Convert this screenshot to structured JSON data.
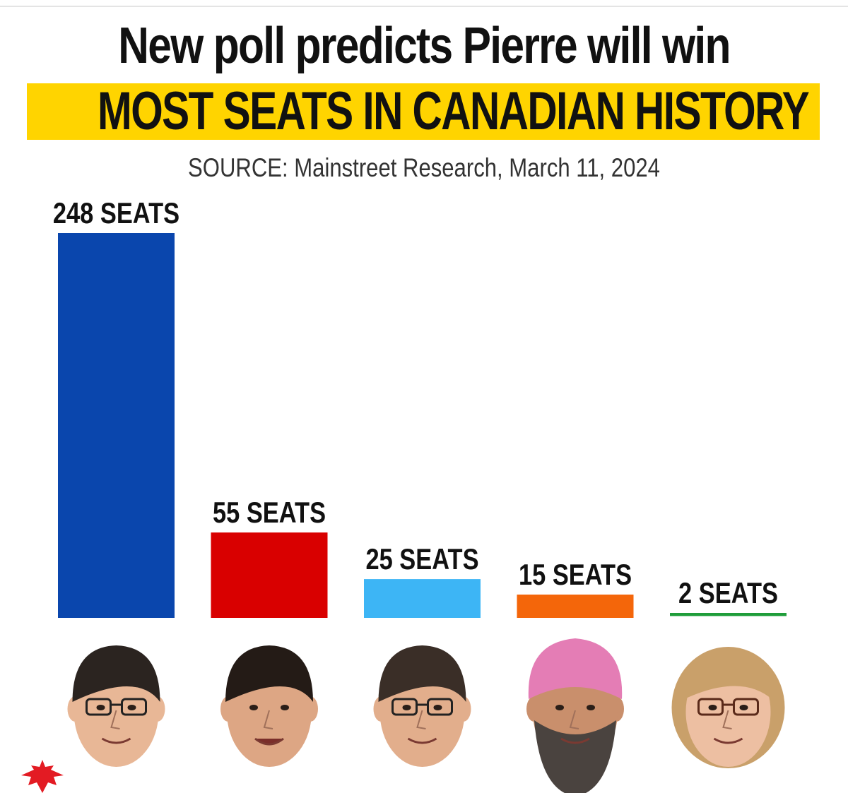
{
  "header": {
    "title": "New poll predicts Pierre will win",
    "highlight": "MOST SEATS IN CANADIAN HISTORY",
    "source": "SOURCE: Mainstreet Research, March 11, 2024"
  },
  "colors": {
    "highlight": "#FFD400",
    "text": "#111111"
  },
  "chart_data": {
    "type": "bar",
    "title": "New poll predicts Pierre will win MOST SEATS IN CANADIAN HISTORY",
    "subtitle": "SOURCE: Mainstreet Research, March 11, 2024",
    "unit": "SEATS",
    "categories": [
      "",
      "",
      "",
      "",
      ""
    ],
    "values": [
      248,
      55,
      25,
      15,
      2
    ],
    "data_labels": [
      "248 SEATS",
      "55 SEATS",
      "25 SEATS",
      "15 SEATS",
      "2 SEATS"
    ],
    "colors": [
      "#0A46AD",
      "#D90000",
      "#3DB5F5",
      "#F4660A",
      "#1F9D3A"
    ],
    "icons": [
      "face-icon",
      "face-icon",
      "face-icon",
      "face-icon",
      "face-icon"
    ],
    "grid": false,
    "legend": "none",
    "axes": "none"
  },
  "decorations": {
    "corner_icon": "maple-leaf-icon",
    "corner_color": "#E31B23"
  }
}
